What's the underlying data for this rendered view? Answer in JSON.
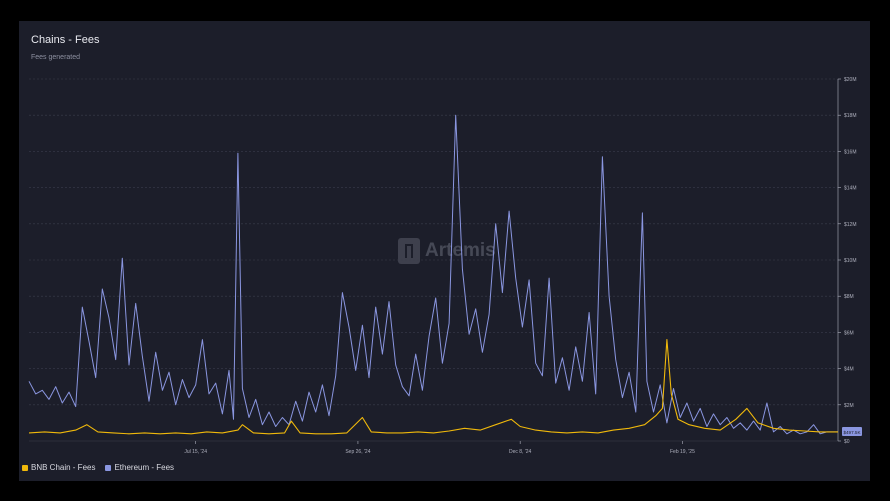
{
  "header": {
    "title": "Chains - Fees",
    "subtitle": "Fees generated"
  },
  "watermark": {
    "text": "Artemis"
  },
  "colors": {
    "background": "#000000",
    "panel": "#1c1e2a",
    "grid": "#3a3d4c",
    "bnb": "#f0b90b",
    "eth": "#8a96e0",
    "axis_text": "#aeb0bd",
    "last_value_tag": "#8a96e0"
  },
  "legend": [
    {
      "label": "BNB Chain - Fees",
      "color": "#f0b90b"
    },
    {
      "label": "Ethereum - Fees",
      "color": "#8a96e0"
    }
  ],
  "last_value_label": "$497.5K",
  "chart_data": {
    "type": "line",
    "title": "Chains - Fees",
    "subtitle": "Fees generated",
    "x_tick_labels": [
      "Jul 15, '24",
      "Sep 26, '24",
      "Dec 8, '24",
      "Feb 19, '25"
    ],
    "y_tick_labels": [
      "$0",
      "$2M",
      "$4M",
      "$6M",
      "$8M",
      "$10M",
      "$12M",
      "$14M",
      "$16M",
      "$18M",
      "$20M"
    ],
    "ylim": [
      0,
      20
    ],
    "y_unit": "$M",
    "x_range": [
      "2024-05-01",
      "2025-04-30"
    ],
    "grid": true,
    "legend_position": "bottom-left",
    "y_axis_position": "right",
    "series": [
      {
        "name": "BNB Chain - Fees",
        "color": "#f0b90b",
        "points": [
          [
            "2024-05-01",
            0.45
          ],
          [
            "2024-05-08",
            0.5
          ],
          [
            "2024-05-15",
            0.45
          ],
          [
            "2024-05-22",
            0.6
          ],
          [
            "2024-05-27",
            0.9
          ],
          [
            "2024-06-01",
            0.5
          ],
          [
            "2024-06-08",
            0.45
          ],
          [
            "2024-06-15",
            0.4
          ],
          [
            "2024-06-22",
            0.45
          ],
          [
            "2024-06-29",
            0.4
          ],
          [
            "2024-07-06",
            0.45
          ],
          [
            "2024-07-13",
            0.4
          ],
          [
            "2024-07-20",
            0.5
          ],
          [
            "2024-07-27",
            0.45
          ],
          [
            "2024-08-03",
            0.6
          ],
          [
            "2024-08-05",
            0.9
          ],
          [
            "2024-08-10",
            0.45
          ],
          [
            "2024-08-17",
            0.4
          ],
          [
            "2024-08-24",
            0.45
          ],
          [
            "2024-08-27",
            1.1
          ],
          [
            "2024-08-31",
            0.45
          ],
          [
            "2024-09-07",
            0.4
          ],
          [
            "2024-09-14",
            0.4
          ],
          [
            "2024-09-21",
            0.45
          ],
          [
            "2024-09-28",
            1.3
          ],
          [
            "2024-10-02",
            0.5
          ],
          [
            "2024-10-09",
            0.45
          ],
          [
            "2024-10-16",
            0.45
          ],
          [
            "2024-10-23",
            0.5
          ],
          [
            "2024-10-30",
            0.45
          ],
          [
            "2024-11-06",
            0.55
          ],
          [
            "2024-11-13",
            0.7
          ],
          [
            "2024-11-20",
            0.6
          ],
          [
            "2024-11-27",
            0.9
          ],
          [
            "2024-12-04",
            1.2
          ],
          [
            "2024-12-08",
            0.8
          ],
          [
            "2024-12-15",
            0.6
          ],
          [
            "2024-12-22",
            0.5
          ],
          [
            "2024-12-29",
            0.45
          ],
          [
            "2025-01-05",
            0.5
          ],
          [
            "2025-01-12",
            0.45
          ],
          [
            "2025-01-19",
            0.6
          ],
          [
            "2025-01-26",
            0.7
          ],
          [
            "2025-02-02",
            0.9
          ],
          [
            "2025-02-07",
            1.4
          ],
          [
            "2025-02-10",
            1.8
          ],
          [
            "2025-02-12",
            5.6
          ],
          [
            "2025-02-14",
            2.6
          ],
          [
            "2025-02-17",
            1.2
          ],
          [
            "2025-02-22",
            0.9
          ],
          [
            "2025-03-01",
            0.7
          ],
          [
            "2025-03-08",
            0.6
          ],
          [
            "2025-03-15",
            1.2
          ],
          [
            "2025-03-20",
            1.8
          ],
          [
            "2025-03-25",
            1.0
          ],
          [
            "2025-04-01",
            0.7
          ],
          [
            "2025-04-08",
            0.6
          ],
          [
            "2025-04-15",
            0.55
          ],
          [
            "2025-04-22",
            0.5
          ],
          [
            "2025-04-30",
            0.5
          ]
        ]
      },
      {
        "name": "Ethereum - Fees",
        "color": "#8a96e0",
        "points": [
          [
            "2024-05-01",
            3.3
          ],
          [
            "2024-05-04",
            2.6
          ],
          [
            "2024-05-07",
            2.8
          ],
          [
            "2024-05-10",
            2.3
          ],
          [
            "2024-05-13",
            3.0
          ],
          [
            "2024-05-16",
            2.1
          ],
          [
            "2024-05-19",
            2.7
          ],
          [
            "2024-05-22",
            1.9
          ],
          [
            "2024-05-25",
            7.4
          ],
          [
            "2024-05-28",
            5.5
          ],
          [
            "2024-05-31",
            3.5
          ],
          [
            "2024-06-03",
            8.4
          ],
          [
            "2024-06-06",
            6.8
          ],
          [
            "2024-06-09",
            4.5
          ],
          [
            "2024-06-12",
            10.1
          ],
          [
            "2024-06-15",
            4.2
          ],
          [
            "2024-06-18",
            7.6
          ],
          [
            "2024-06-21",
            4.7
          ],
          [
            "2024-06-24",
            2.2
          ],
          [
            "2024-06-27",
            4.9
          ],
          [
            "2024-06-30",
            2.8
          ],
          [
            "2024-07-03",
            3.8
          ],
          [
            "2024-07-06",
            2.0
          ],
          [
            "2024-07-09",
            3.4
          ],
          [
            "2024-07-12",
            2.4
          ],
          [
            "2024-07-15",
            3.1
          ],
          [
            "2024-07-18",
            5.6
          ],
          [
            "2024-07-21",
            2.6
          ],
          [
            "2024-07-24",
            3.2
          ],
          [
            "2024-07-27",
            1.5
          ],
          [
            "2024-07-30",
            3.9
          ],
          [
            "2024-08-01",
            1.2
          ],
          [
            "2024-08-03",
            15.9
          ],
          [
            "2024-08-05",
            2.9
          ],
          [
            "2024-08-08",
            1.3
          ],
          [
            "2024-08-11",
            2.3
          ],
          [
            "2024-08-14",
            0.9
          ],
          [
            "2024-08-17",
            1.6
          ],
          [
            "2024-08-20",
            0.8
          ],
          [
            "2024-08-23",
            1.3
          ],
          [
            "2024-08-26",
            0.9
          ],
          [
            "2024-08-29",
            2.2
          ],
          [
            "2024-09-01",
            1.1
          ],
          [
            "2024-09-04",
            2.7
          ],
          [
            "2024-09-07",
            1.6
          ],
          [
            "2024-09-10",
            3.1
          ],
          [
            "2024-09-13",
            1.4
          ],
          [
            "2024-09-16",
            3.6
          ],
          [
            "2024-09-19",
            8.2
          ],
          [
            "2024-09-22",
            6.3
          ],
          [
            "2024-09-25",
            3.9
          ],
          [
            "2024-09-28",
            6.4
          ],
          [
            "2024-10-01",
            3.5
          ],
          [
            "2024-10-04",
            7.4
          ],
          [
            "2024-10-07",
            4.8
          ],
          [
            "2024-10-10",
            7.7
          ],
          [
            "2024-10-13",
            4.2
          ],
          [
            "2024-10-16",
            3.0
          ],
          [
            "2024-10-19",
            2.5
          ],
          [
            "2024-10-22",
            4.8
          ],
          [
            "2024-10-25",
            2.8
          ],
          [
            "2024-10-28",
            5.8
          ],
          [
            "2024-10-31",
            7.9
          ],
          [
            "2024-11-03",
            4.3
          ],
          [
            "2024-11-06",
            6.5
          ],
          [
            "2024-11-09",
            18.0
          ],
          [
            "2024-11-12",
            9.5
          ],
          [
            "2024-11-15",
            5.9
          ],
          [
            "2024-11-18",
            7.3
          ],
          [
            "2024-11-21",
            4.9
          ],
          [
            "2024-11-24",
            7.0
          ],
          [
            "2024-11-27",
            12.0
          ],
          [
            "2024-11-30",
            8.2
          ],
          [
            "2024-12-03",
            12.7
          ],
          [
            "2024-12-06",
            9.0
          ],
          [
            "2024-12-09",
            6.3
          ],
          [
            "2024-12-12",
            8.9
          ],
          [
            "2024-12-15",
            4.3
          ],
          [
            "2024-12-18",
            3.6
          ],
          [
            "2024-12-21",
            9.0
          ],
          [
            "2024-12-24",
            3.2
          ],
          [
            "2024-12-27",
            4.6
          ],
          [
            "2024-12-30",
            2.8
          ],
          [
            "2025-01-02",
            5.2
          ],
          [
            "2025-01-05",
            3.3
          ],
          [
            "2025-01-08",
            7.1
          ],
          [
            "2025-01-11",
            2.6
          ],
          [
            "2025-01-14",
            15.7
          ],
          [
            "2025-01-17",
            8.0
          ],
          [
            "2025-01-20",
            4.5
          ],
          [
            "2025-01-23",
            2.4
          ],
          [
            "2025-01-26",
            3.8
          ],
          [
            "2025-01-29",
            1.6
          ],
          [
            "2025-02-01",
            12.6
          ],
          [
            "2025-02-03",
            3.3
          ],
          [
            "2025-02-06",
            1.6
          ],
          [
            "2025-02-09",
            3.1
          ],
          [
            "2025-02-12",
            1.0
          ],
          [
            "2025-02-15",
            2.9
          ],
          [
            "2025-02-18",
            1.3
          ],
          [
            "2025-02-21",
            2.1
          ],
          [
            "2025-02-24",
            1.1
          ],
          [
            "2025-02-27",
            1.8
          ],
          [
            "2025-03-02",
            0.8
          ],
          [
            "2025-03-05",
            1.5
          ],
          [
            "2025-03-08",
            0.9
          ],
          [
            "2025-03-11",
            1.3
          ],
          [
            "2025-03-14",
            0.7
          ],
          [
            "2025-03-17",
            1.0
          ],
          [
            "2025-03-20",
            0.6
          ],
          [
            "2025-03-23",
            1.1
          ],
          [
            "2025-03-26",
            0.6
          ],
          [
            "2025-03-29",
            2.1
          ],
          [
            "2025-04-01",
            0.5
          ],
          [
            "2025-04-04",
            0.8
          ],
          [
            "2025-04-07",
            0.4
          ],
          [
            "2025-04-10",
            0.6
          ],
          [
            "2025-04-13",
            0.4
          ],
          [
            "2025-04-16",
            0.5
          ],
          [
            "2025-04-19",
            0.9
          ],
          [
            "2025-04-22",
            0.4
          ],
          [
            "2025-04-25",
            0.5
          ],
          [
            "2025-04-30",
            0.5
          ]
        ]
      }
    ]
  }
}
